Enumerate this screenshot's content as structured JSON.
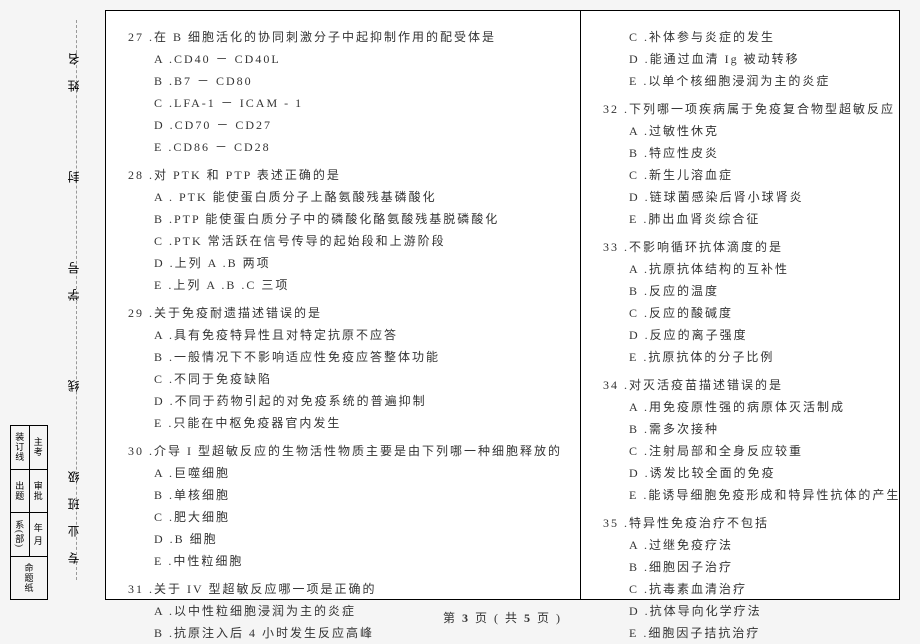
{
  "sidebar": {
    "labels": [
      "姓 名",
      "封",
      "学 号",
      "线",
      "专 业 班 级"
    ],
    "dashLabels": [
      "密"
    ],
    "table": {
      "cells": [
        "装订线",
        "主考",
        "出题",
        "审批",
        "系(部)",
        "年  月",
        "命题纸"
      ]
    }
  },
  "leftColumn": [
    {
      "num": "27",
      "stem": ".在 B 细胞活化的协同刺激分子中起抑制作用的配受体是",
      "opts": [
        "A .CD40 － CD40L",
        "B .B7 － CD80",
        "C .LFA-1 － ICAM - 1",
        "D .CD70 － CD27",
        "E .CD86 － CD28"
      ]
    },
    {
      "num": "28",
      "stem": ".对 PTK 和 PTP 表述正确的是",
      "opts": [
        "A . PTK 能使蛋白质分子上酪氨酸残基磷酸化",
        "B .PTP 能使蛋白质分子中的磷酸化酪氨酸残基脱磷酸化",
        "C .PTK 常活跃在信号传导的起始段和上游阶段",
        "D .上列 A .B 两项",
        "E .上列 A .B .C 三项"
      ]
    },
    {
      "num": "29",
      "stem": ".关于免疫耐遗描述错误的是",
      "opts": [
        "A .具有免疫特异性且对特定抗原不应答",
        "B .一般情况下不影响适应性免疫应答整体功能",
        "C .不同于免疫缺陷",
        "D .不同于药物引起的对免疫系统的普遍抑制",
        "E .只能在中枢免疫器官内发生"
      ]
    },
    {
      "num": "30",
      "stem": ".介导 I 型超敏反应的生物活性物质主要是由下列哪一种细胞释放的",
      "opts": [
        "A .巨噬细胞",
        "B .单核细胞",
        "C .肥大细胞",
        "D .B 细胞",
        "E .中性粒细胞"
      ]
    },
    {
      "num": "31",
      "stem": ".关于 IV 型超敏反应哪一项是正确的",
      "opts": [
        "A .以中性粒细胞浸润为主的炎症",
        "B .抗原注入后 4 小时发生反应高峰"
      ]
    }
  ],
  "rightColumn": [
    {
      "opts": [
        "C .补体参与炎症的发生",
        "D .能通过血清 Ig 被动转移",
        "E .以单个核细胞浸润为主的炎症"
      ]
    },
    {
      "num": "32",
      "stem": ".下列哪一项疾病属于免疫复合物型超敏反应",
      "opts": [
        "A .过敏性休克",
        "B .特应性皮炎",
        "C .新生儿溶血症",
        "D .链球菌感染后肾小球肾炎",
        "E .肺出血肾炎综合征"
      ]
    },
    {
      "num": "33",
      "stem": ".不影响循环抗体滴度的是",
      "opts": [
        "A .抗原抗体结构的互补性",
        "B .反应的温度",
        "C .反应的酸碱度",
        "D .反应的离子强度",
        "E .抗原抗体的分子比例"
      ]
    },
    {
      "num": "34",
      "stem": ".对灭活疫苗描述错误的是",
      "opts": [
        "A .用免疫原性强的病原体灭活制成",
        "B .需多次接种",
        "C .注射局部和全身反应较重",
        "D .诱发比较全面的免疫",
        "E .能诱导细胞免疫形成和特异性抗体的产生"
      ]
    },
    {
      "num": "35",
      "stem": ".特异性免疫治疗不包括",
      "opts": [
        "A .过继免疫疗法",
        "B .细胞因子治疗",
        "C .抗毒素血清治疗",
        "D .抗体导向化学疗法",
        "E .细胞因子拮抗治疗"
      ]
    }
  ],
  "footer": {
    "prefix": "第",
    "cur": "3",
    "mid": "页 ( 共",
    "total": "5",
    "suffix": "页 )"
  }
}
